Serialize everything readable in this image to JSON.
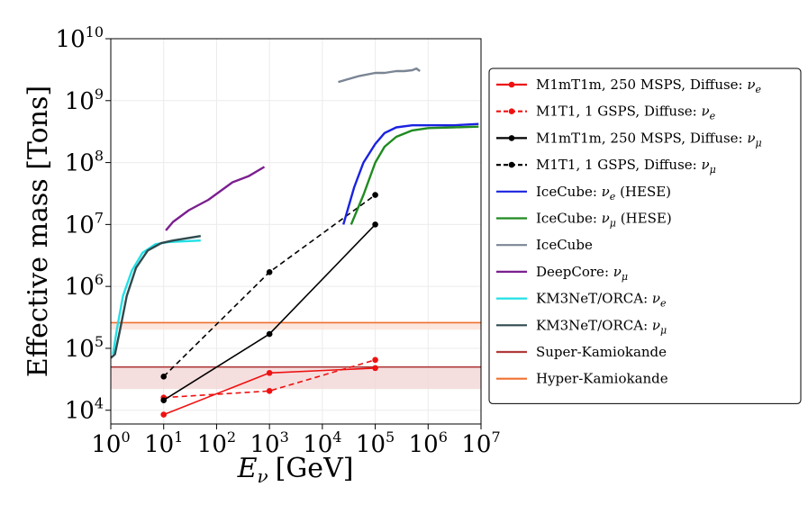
{
  "chart_data": {
    "type": "line",
    "title": "",
    "xlabel": "E_ν [GeV]",
    "xlabel_parts": {
      "symbol": "E",
      "sub": "ν",
      "unit": "[GeV]"
    },
    "ylabel": "Effective mass [Tons]",
    "xscale": "log",
    "yscale": "log",
    "xlim": [
      1,
      10000000
    ],
    "ylim": [
      6000,
      10000000000
    ],
    "grid": true,
    "legend_position": "right, outside plot",
    "x_ticks": [
      {
        "base": "10",
        "exp": "0",
        "value": 1
      },
      {
        "base": "10",
        "exp": "1",
        "value": 10
      },
      {
        "base": "10",
        "exp": "2",
        "value": 100
      },
      {
        "base": "10",
        "exp": "3",
        "value": 1000
      },
      {
        "base": "10",
        "exp": "4",
        "value": 10000
      },
      {
        "base": "10",
        "exp": "5",
        "value": 100000
      },
      {
        "base": "10",
        "exp": "6",
        "value": 1000000
      },
      {
        "base": "10",
        "exp": "7",
        "value": 10000000
      }
    ],
    "y_ticks": [
      {
        "base": "10",
        "exp": "4",
        "value": 10000
      },
      {
        "base": "10",
        "exp": "5",
        "value": 100000
      },
      {
        "base": "10",
        "exp": "6",
        "value": 1000000
      },
      {
        "base": "10",
        "exp": "7",
        "value": 10000000
      },
      {
        "base": "10",
        "exp": "8",
        "value": 100000000
      },
      {
        "base": "10",
        "exp": "9",
        "value": 1000000000
      },
      {
        "base": "10",
        "exp": "10",
        "value": 10000000000
      }
    ],
    "bands": [
      {
        "name": "Super-Kamiokande",
        "center": 50000,
        "low": 22000,
        "high": 50000,
        "color": "#b03a3a",
        "fill": "#f2d6d6"
      },
      {
        "name": "Hyper-Kamiokande",
        "center": 260000,
        "low": 200000,
        "high": 260000,
        "color": "#f07030",
        "fill": "#fbe0d6"
      }
    ],
    "series": [
      {
        "name": "M1mT1m, 250 MSPS, Diffuse: ν_e",
        "label": "M1mT1m, 250 MSPS, Diffuse: ",
        "sym": "ν",
        "sub": "e",
        "color": "#ee1111",
        "dash": "solid",
        "markers": true,
        "x": [
          10,
          1000,
          100000
        ],
        "y": [
          8500,
          40000,
          48000
        ]
      },
      {
        "name": "M1T1, 1 GSPS, Diffuse: ν_e",
        "label": "M1T1, 1 GSPS, Diffuse: ",
        "sym": "ν",
        "sub": "e",
        "color": "#ee1111",
        "dash": "dashed",
        "markers": true,
        "x": [
          10,
          1000,
          100000
        ],
        "y": [
          16000,
          20500,
          65000
        ]
      },
      {
        "name": "M1mT1m, 250 MSPS, Diffuse: ν_μ",
        "label": "M1mT1m, 250 MSPS, Diffuse: ",
        "sym": "ν",
        "sub": "μ",
        "color": "#000000",
        "dash": "solid",
        "markers": true,
        "x": [
          10,
          1000,
          100000
        ],
        "y": [
          14500,
          170000,
          10000000
        ]
      },
      {
        "name": "M1T1, 1 GSPS, Diffuse: ν_μ",
        "label": "M1T1, 1 GSPS, Diffuse: ",
        "sym": "ν",
        "sub": "μ",
        "color": "#000000",
        "dash": "dashed",
        "markers": true,
        "x": [
          10,
          1000,
          100000
        ],
        "y": [
          35000,
          1700000,
          30000000
        ]
      },
      {
        "name": "IceCube: ν_e (HESE)",
        "label": "IceCube: ",
        "sym": "ν",
        "sub": "e",
        "suffix": " (HESE)",
        "color": "#1a22e0",
        "dash": "solid",
        "markers": false,
        "x": [
          25000,
          40000,
          60000,
          100000,
          150000,
          250000,
          500000,
          1000000,
          3000000,
          9000000
        ],
        "y": [
          10000000,
          40000000,
          100000000,
          200000000,
          300000000,
          370000000,
          400000000,
          400000000,
          400000000,
          420000000
        ]
      },
      {
        "name": "IceCube: ν_μ (HESE)",
        "label": "IceCube: ",
        "sym": "ν",
        "sub": "μ",
        "suffix": " (HESE)",
        "color": "#1f8a20",
        "dash": "solid",
        "markers": false,
        "x": [
          35000,
          60000,
          100000,
          150000,
          250000,
          500000,
          1000000,
          3000000,
          9000000
        ],
        "y": [
          10000000,
          30000000,
          100000000,
          180000000,
          260000000,
          330000000,
          360000000,
          370000000,
          380000000
        ]
      },
      {
        "name": "IceCube",
        "label": "IceCube",
        "color": "#7a8594",
        "dash": "solid",
        "markers": false,
        "x": [
          20000,
          50000,
          100000,
          150000,
          250000,
          350000,
          500000,
          600000,
          700000
        ],
        "y": [
          2000000000,
          2500000000,
          2800000000,
          2800000000,
          3000000000,
          3000000000,
          3100000000,
          3300000000,
          3000000000
        ]
      },
      {
        "name": "DeepCore: ν_μ",
        "label": "DeepCore: ",
        "sym": "ν",
        "sub": "μ",
        "color": "#7b1f8f",
        "dash": "solid",
        "markers": false,
        "x": [
          11,
          15,
          30,
          70,
          200,
          400,
          800
        ],
        "y": [
          8000000,
          11000000,
          17000000,
          25000000,
          48000000,
          60000000,
          85000000
        ]
      },
      {
        "name": "KM3NeT/ORCA: ν_e",
        "label": "KM3NeT/ORCA: ",
        "sym": "ν",
        "sub": "e",
        "color": "#22e0e6",
        "dash": "solid",
        "markers": false,
        "x": [
          1.1,
          1.3,
          1.7,
          2.5,
          4,
          7,
          12,
          50
        ],
        "y": [
          80000,
          200000,
          700000,
          1800000,
          3500000,
          4800000,
          5200000,
          5500000
        ]
      },
      {
        "name": "KM3NeT/ORCA: ν_μ",
        "label": "KM3NeT/ORCA: ",
        "sym": "ν",
        "sub": "μ",
        "color": "#2e4a4e",
        "dash": "solid",
        "markers": false,
        "x": [
          1.0,
          1.2,
          1.5,
          2,
          3,
          5,
          9,
          15,
          50
        ],
        "y": [
          70000,
          80000,
          200000,
          700000,
          2000000,
          3800000,
          5000000,
          5500000,
          6500000
        ]
      }
    ],
    "legend": [
      {
        "text": "M1mT1m, 250 MSPS, Diffuse: ",
        "sym": "ν",
        "sub": "e",
        "color": "#ee1111",
        "dash": "solid",
        "marker": true
      },
      {
        "text": "M1T1, 1 GSPS, Diffuse: ",
        "sym": "ν",
        "sub": "e",
        "color": "#ee1111",
        "dash": "dashed",
        "marker": true
      },
      {
        "text": "M1mT1m, 250 MSPS, Diffuse: ",
        "sym": "ν",
        "sub": "μ",
        "color": "#000000",
        "dash": "solid",
        "marker": true
      },
      {
        "text": "M1T1, 1 GSPS, Diffuse: ",
        "sym": "ν",
        "sub": "μ",
        "color": "#000000",
        "dash": "dashed",
        "marker": true
      },
      {
        "text": "IceCube: ",
        "sym": "ν",
        "sub": "e",
        "suffix": " (HESE)",
        "color": "#1a22e0",
        "dash": "solid",
        "marker": false
      },
      {
        "text": "IceCube: ",
        "sym": "ν",
        "sub": "μ",
        "suffix": " (HESE)",
        "color": "#1f8a20",
        "dash": "solid",
        "marker": false
      },
      {
        "text": "IceCube",
        "color": "#7a8594",
        "dash": "solid",
        "marker": false
      },
      {
        "text": "DeepCore: ",
        "sym": "ν",
        "sub": "μ",
        "color": "#7b1f8f",
        "dash": "solid",
        "marker": false
      },
      {
        "text": "KM3NeT/ORCA: ",
        "sym": "ν",
        "sub": "e",
        "color": "#22e0e6",
        "dash": "solid",
        "marker": false
      },
      {
        "text": "KM3NeT/ORCA: ",
        "sym": "ν",
        "sub": "μ",
        "color": "#2e4a4e",
        "dash": "solid",
        "marker": false
      },
      {
        "text": "Super-Kamiokande",
        "color": "#b03a3a",
        "dash": "solid",
        "marker": false
      },
      {
        "text": "Hyper-Kamiokande",
        "color": "#f07030",
        "dash": "solid",
        "marker": false
      }
    ]
  }
}
